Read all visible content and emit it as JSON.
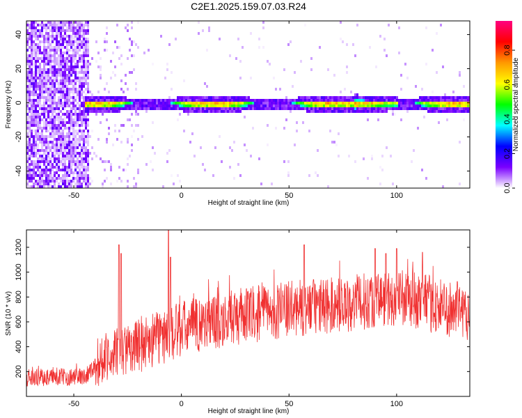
{
  "title": "C2E1.2025.159.07.03.R24",
  "chart_data": [
    {
      "type": "heatmap",
      "xlabel": "Height of straight line (km)",
      "ylabel": "Frequency (Hz)",
      "xlim": [
        -72,
        134
      ],
      "ylim": [
        -50,
        48
      ],
      "xticks": [
        -50,
        0,
        50,
        100
      ],
      "yticks": [
        -40,
        -20,
        0,
        20,
        40
      ],
      "colorbar": {
        "label": "Normalized spectral amplitude",
        "range": [
          0,
          0.97
        ],
        "ticks": [
          "0.0",
          "0.2",
          "0.4",
          "0.6",
          "0.8"
        ],
        "tick_values": [
          0,
          0.2,
          0.4,
          0.6,
          0.8
        ],
        "colors": [
          "#ffffff",
          "#7a00ff",
          "#0000ff",
          "#00ffff",
          "#00ff00",
          "#ffff00",
          "#ff9900",
          "#ff0000",
          "#ff0080"
        ]
      },
      "description_values": {
        "noise_region_x": [
          -72,
          -43
        ],
        "band_center_hz": 0,
        "band_start_x": -45,
        "band_end_x": 134
      }
    },
    {
      "type": "line",
      "xlabel": "Height of straight line (km)",
      "ylabel": "SNR (10 * v/v)",
      "xlim": [
        -72,
        134
      ],
      "ylim": [
        0,
        1340
      ],
      "xticks": [
        -50,
        0,
        50,
        100
      ],
      "yticks": [
        200,
        400,
        600,
        800,
        1000,
        1200
      ],
      "color": "#f03030",
      "trend": {
        "x": [
          -72,
          -45,
          -40,
          -35,
          -30,
          -25,
          -20,
          -10,
          0,
          10,
          20,
          30,
          40,
          50,
          60,
          70,
          80,
          90,
          100,
          110,
          120,
          134
        ],
        "y": [
          150,
          160,
          250,
          330,
          350,
          380,
          420,
          470,
          540,
          590,
          620,
          650,
          680,
          700,
          720,
          730,
          750,
          780,
          790,
          770,
          720,
          680
        ]
      },
      "peaks": {
        "x": [
          -29,
          -28,
          -6,
          -5,
          57,
          90,
          95,
          100,
          112
        ],
        "y": [
          1220,
          1150,
          1340,
          1120,
          1220,
          1190,
          1150,
          1190,
          1160
        ]
      }
    }
  ]
}
